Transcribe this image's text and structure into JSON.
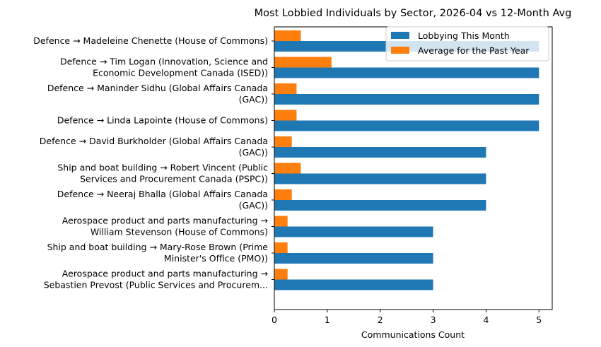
{
  "chart_data": {
    "type": "bar",
    "orientation": "horizontal",
    "title": "Most Lobbied Individuals by Sector, 2026-04 vs 12-Month Avg",
    "xlabel": "Communications Count",
    "ylabel": "",
    "xlim": [
      0,
      5.25
    ],
    "xticks": [
      0,
      1,
      2,
      3,
      4,
      5
    ],
    "grid": false,
    "legend_position": "top-right",
    "categories": [
      [
        "Defence → Madeleine Chenette (House of Commons)"
      ],
      [
        "Defence → Tim Logan (Innovation, Science and",
        "Economic Development Canada (ISED))"
      ],
      [
        "Defence → Maninder Sidhu (Global Affairs Canada",
        "(GAC))"
      ],
      [
        "Defence → Linda Lapointe (House of Commons)"
      ],
      [
        "Defence → David Burkholder (Global Affairs Canada",
        "(GAC))"
      ],
      [
        "Ship and boat building → Robert Vincent (Public",
        "Services and Procurement Canada (PSPC))"
      ],
      [
        "Defence → Neeraj Bhalla (Global Affairs Canada",
        "(GAC))"
      ],
      [
        "Aerospace product and parts manufacturing →",
        "William Stevenson (House of Commons)"
      ],
      [
        "Ship and boat building → Mary-Rose Brown (Prime",
        "Minister's Office (PMO))"
      ],
      [
        "Aerospace product and parts manufacturing →",
        "Sebastien Prevost (Public Services and Procurem..."
      ]
    ],
    "series": [
      {
        "name": "Lobbying This Month",
        "color": "#1f77b4",
        "values": [
          5,
          5,
          5,
          5,
          4,
          4,
          4,
          3,
          3,
          3
        ]
      },
      {
        "name": "Average for the Past Year",
        "color": "#ff7f0e",
        "values": [
          0.5,
          1.08,
          0.42,
          0.42,
          0.33,
          0.5,
          0.33,
          0.25,
          0.25,
          0.25
        ]
      }
    ]
  }
}
